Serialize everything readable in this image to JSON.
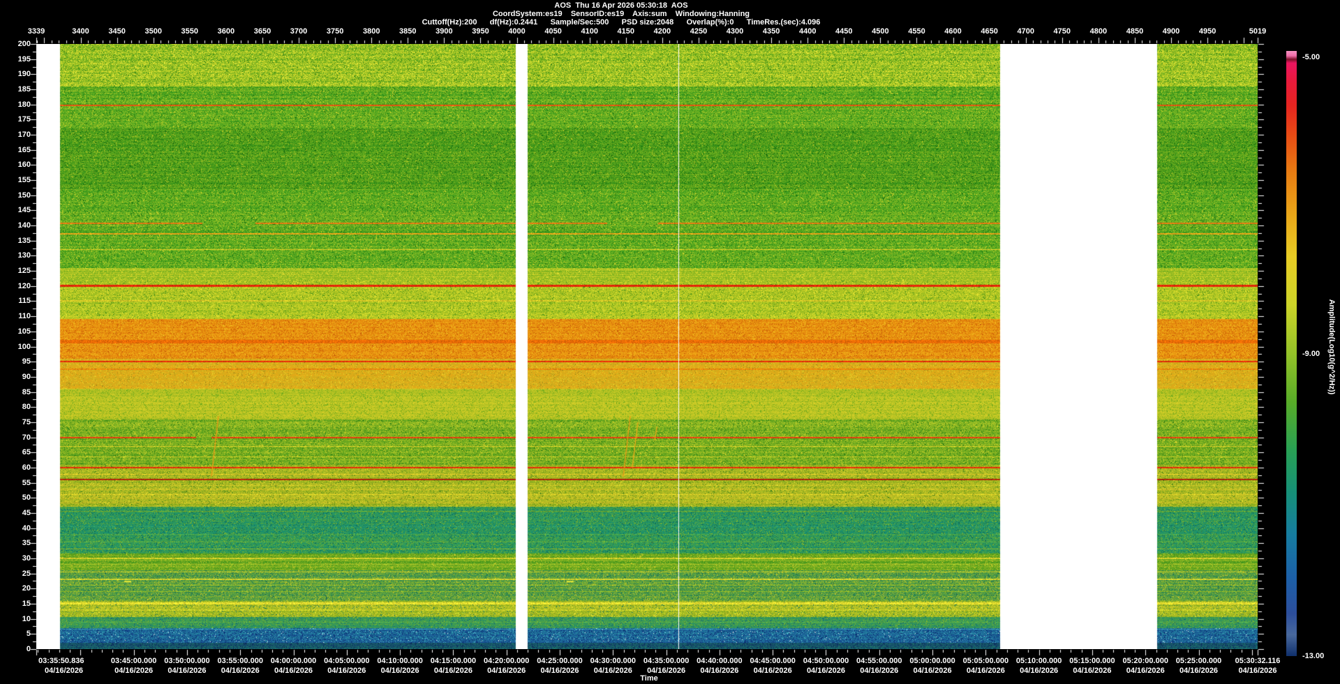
{
  "colors": {
    "background": "#000000",
    "text": "#ffffff"
  },
  "header": {
    "line1": "AOS  Thu 16 Apr 2026 05:30:18  AOS",
    "line2": "CoordSystem:es19    SensorID:es19    Axis:sum    Windowing:Hanning",
    "line3": "Cuttoff(Hz):200      df(Hz):0.2441      Sample/Sec:500      PSD size:2048      Overlap(%):0      TimeRes.(sec):4.096"
  },
  "chart_data": {
    "type": "heatmap",
    "title": "AOS spectrogram",
    "top_axis": {
      "unit_range": [
        3339,
        5019
      ],
      "minor_step": 10,
      "major_step": 50,
      "labels": [
        3339,
        3400,
        3450,
        3500,
        3550,
        3600,
        3650,
        3700,
        3750,
        3800,
        3850,
        3900,
        3950,
        4000,
        4050,
        4100,
        4150,
        4200,
        4250,
        4300,
        4350,
        4400,
        4450,
        4500,
        4550,
        4600,
        4650,
        4700,
        4750,
        4800,
        4850,
        4900,
        4950,
        5019
      ]
    },
    "freq_axis": {
      "range": [
        0,
        200
      ],
      "label_step": 5,
      "minor_step": 2.5,
      "labels": [
        200,
        195,
        190,
        185,
        180,
        175,
        170,
        165,
        160,
        155,
        150,
        145,
        140,
        135,
        130,
        125,
        120,
        115,
        110,
        105,
        100,
        95,
        90,
        85,
        80,
        75,
        70,
        65,
        60,
        55,
        50,
        45,
        40,
        35,
        30,
        25,
        20,
        15,
        10,
        5,
        0
      ]
    },
    "time_axis": {
      "title": "Time",
      "date": "04/16/2026",
      "start_sec": 12950.836,
      "end_sec": 19832.116,
      "major_step_sec": 300,
      "minor_step_sec": 60,
      "labels": [
        {
          "text": "03:35:50.836",
          "sec": 12950.836
        },
        {
          "text": "03:45:00.000",
          "sec": 13500
        },
        {
          "text": "03:50:00.000",
          "sec": 13800
        },
        {
          "text": "03:55:00.000",
          "sec": 14100
        },
        {
          "text": "04:00:00.000",
          "sec": 14400
        },
        {
          "text": "04:05:00.000",
          "sec": 14700
        },
        {
          "text": "04:10:00.000",
          "sec": 15000
        },
        {
          "text": "04:15:00.000",
          "sec": 15300
        },
        {
          "text": "04:20:00.000",
          "sec": 15600
        },
        {
          "text": "04:25:00.000",
          "sec": 15900
        },
        {
          "text": "04:30:00.000",
          "sec": 16200
        },
        {
          "text": "04:35:00.000",
          "sec": 16500
        },
        {
          "text": "04:40:00.000",
          "sec": 16800
        },
        {
          "text": "04:45:00.000",
          "sec": 17100
        },
        {
          "text": "04:50:00.000",
          "sec": 17400
        },
        {
          "text": "04:55:00.000",
          "sec": 17700
        },
        {
          "text": "05:00:00.000",
          "sec": 18000
        },
        {
          "text": "05:05:00.000",
          "sec": 18300
        },
        {
          "text": "05:10:00.000",
          "sec": 18600
        },
        {
          "text": "05:15:00.000",
          "sec": 18900
        },
        {
          "text": "05:20:00.000",
          "sec": 19200
        },
        {
          "text": "05:25:00.000",
          "sec": 19500
        },
        {
          "text": "05:30:32.116",
          "sec": 19832.116
        }
      ]
    },
    "colorbar": {
      "label": "Amplitude(Log10(g^2/Hz))",
      "tick_labels": [
        {
          "text": "-5.00",
          "pos": 0.01
        },
        {
          "text": "-9.00",
          "pos": 0.5
        },
        {
          "text": "-13.00",
          "pos": 1.0
        }
      ],
      "stops": [
        [
          0.0,
          "#f592c0"
        ],
        [
          0.008,
          "#f06ca8"
        ],
        [
          0.014,
          "#7c1028"
        ],
        [
          0.02,
          "#ec1460"
        ],
        [
          0.05,
          "#e81a3c"
        ],
        [
          0.09,
          "#e62420"
        ],
        [
          0.14,
          "#e84c14"
        ],
        [
          0.2,
          "#e87c12"
        ],
        [
          0.27,
          "#eaa618"
        ],
        [
          0.34,
          "#e8cc24"
        ],
        [
          0.42,
          "#ccd428"
        ],
        [
          0.5,
          "#94c228"
        ],
        [
          0.58,
          "#58ac28"
        ],
        [
          0.66,
          "#28a054"
        ],
        [
          0.73,
          "#169078"
        ],
        [
          0.8,
          "#167ca0"
        ],
        [
          0.87,
          "#1c60a8"
        ],
        [
          0.93,
          "#2c4e9c"
        ],
        [
          0.965,
          "#48689c"
        ],
        [
          1.0,
          "#10306c"
        ]
      ]
    },
    "data_segments": [
      [
        0.0194,
        0.3926
      ],
      [
        0.4023,
        0.7891
      ],
      [
        0.9177,
        1.0
      ]
    ],
    "white_line_frac": 0.5257,
    "bands": [
      {
        "lo": 186,
        "hi": 201,
        "c1": "#58a41c",
        "c2": "#d8dc2c",
        "spread": 0.95,
        "sp": [
          [
            "#eeee3e",
            0.09
          ],
          [
            "#2e7c14",
            0.06
          ]
        ]
      },
      {
        "lo": 152,
        "hi": 172,
        "c1": "#2a8c18",
        "c2": "#7eb620",
        "spread": 0.9,
        "sp": [
          [
            "#c8cc28",
            0.04
          ],
          [
            "#1a6c0e",
            0.1
          ]
        ]
      },
      {
        "lo": 126,
        "hi": 186,
        "c1": "#2f961c",
        "c2": "#94c226",
        "spread": 0.9,
        "sp": [
          [
            "#d8d82c",
            0.05
          ],
          [
            "#1d7210",
            0.07
          ]
        ]
      },
      {
        "lo": 121.7,
        "hi": 126,
        "c1": "#6cac1e",
        "c2": "#ccd028",
        "spread": 0.9,
        "sp": [
          [
            "#e8e434",
            0.07
          ]
        ]
      },
      {
        "lo": 109,
        "hi": 121.7,
        "c1": "#84b41e",
        "c2": "#d4d428",
        "spread": 0.9,
        "sp": [
          [
            "#e8e834",
            0.1
          ],
          [
            "#448c18",
            0.06
          ]
        ]
      },
      {
        "lo": 96,
        "hi": 109,
        "c1": "#e07c0a",
        "c2": "#f0a816",
        "spread": 0.85,
        "sp": [
          [
            "#f0c020",
            0.08
          ],
          [
            "#c85c08",
            0.1
          ]
        ]
      },
      {
        "lo": 86,
        "hi": 96,
        "c1": "#c8b020",
        "c2": "#e8a816",
        "spread": 0.85,
        "sp": [
          [
            "#e8d028",
            0.1
          ],
          [
            "#a08818",
            0.05
          ]
        ]
      },
      {
        "lo": 76,
        "hi": 86,
        "c1": "#9cb820",
        "c2": "#d8d028",
        "spread": 0.9,
        "sp": [
          [
            "#68a81c",
            0.09
          ]
        ]
      },
      {
        "lo": 61,
        "hi": 76,
        "c1": "#48981c",
        "c2": "#a8c426",
        "spread": 0.9,
        "sp": [
          [
            "#d8d42c",
            0.06
          ],
          [
            "#2a7812",
            0.06
          ]
        ]
      },
      {
        "lo": 47,
        "hi": 61,
        "c1": "#84aa1e",
        "c2": "#ccc426",
        "spread": 0.9,
        "sp": [
          [
            "#e0dc30",
            0.07
          ],
          [
            "#417f18",
            0.06
          ]
        ]
      },
      {
        "lo": 31.5,
        "hi": 47,
        "c1": "#148c74",
        "c2": "#48a444",
        "spread": 0.9,
        "sp": [
          [
            "#88b828",
            0.07
          ],
          [
            "#0c6858",
            0.09
          ]
        ]
      },
      {
        "lo": 26,
        "hi": 31.5,
        "c1": "#3f941c",
        "c2": "#98bc24",
        "spread": 0.9,
        "sp": [
          [
            "#d0cc2c",
            0.06
          ]
        ]
      },
      {
        "lo": 16,
        "hi": 26,
        "c1": "#2f8c54",
        "c2": "#88b42c",
        "spread": 0.9,
        "sp": [
          [
            "#c8c82c",
            0.07
          ],
          [
            "#176850",
            0.07
          ]
        ]
      },
      {
        "lo": 10.5,
        "hi": 16,
        "c1": "#78a81e",
        "c2": "#d0cc28",
        "spread": 0.9,
        "sp": [
          [
            "#e8e434",
            0.07
          ],
          [
            "#1f7858",
            0.06
          ]
        ]
      },
      {
        "lo": 7,
        "hi": 10.5,
        "c1": "#1f8c6c",
        "c2": "#50a444",
        "spread": 0.9,
        "sp": [
          [
            "#88b828",
            0.06
          ],
          [
            "#0e6078",
            0.07
          ]
        ]
      },
      {
        "lo": 2,
        "hi": 7,
        "c1": "#174e94",
        "c2": "#2588a0",
        "spread": 0.95,
        "sp": [
          [
            "#0c3474",
            0.16
          ],
          [
            "#58c0d0",
            0.05
          ],
          [
            "#e8f0f0",
            0.012
          ]
        ]
      },
      {
        "lo": 0,
        "hi": 2,
        "c1": "#11406c",
        "c2": "#1f7868",
        "spread": 0.9,
        "sp": [
          [
            "#0c2c58",
            0.15
          ]
        ]
      }
    ],
    "lines": [
      {
        "f": 179.6,
        "h": 2,
        "c": "#e85510"
      },
      {
        "f": 140.6,
        "h": 2,
        "c": "#e87a12",
        "gaps": [
          [
            0.136,
            0.179
          ],
          [
            0.467,
            0.509
          ]
        ]
      },
      {
        "f": 137.2,
        "h": 2,
        "c": "#e8a418"
      },
      {
        "f": 132.0,
        "h": 1,
        "c": "#d8cc28"
      },
      {
        "f": 120.0,
        "h": 3,
        "c": "#e42608"
      },
      {
        "f": 115.2,
        "h": 2,
        "c": "#d8c828"
      },
      {
        "f": 101.5,
        "h": 5,
        "c": "#ec6c06"
      },
      {
        "f": 95.0,
        "h": 2,
        "c": "#e62c08"
      },
      {
        "f": 92.6,
        "h": 2,
        "c": "#e8860e"
      },
      {
        "f": 70.0,
        "h": 2,
        "c": "#e84010",
        "gaps": [
          [
            0.1303,
            0.1429
          ]
        ]
      },
      {
        "f": 67.0,
        "h": 1,
        "c": "#d4cc28"
      },
      {
        "f": 63.5,
        "h": 1,
        "c": "#c4c826"
      },
      {
        "f": 60.0,
        "h": 2,
        "c": "#e42e08"
      },
      {
        "f": 57.8,
        "h": 1,
        "c": "#dcc828"
      },
      {
        "f": 56.0,
        "h": 2,
        "c": "#b22408"
      },
      {
        "f": 54.2,
        "h": 1,
        "c": "#d0c828"
      },
      {
        "f": 52.6,
        "h": 1,
        "c": "#ccc026"
      },
      {
        "f": 51.0,
        "h": 1,
        "c": "#dcd028"
      },
      {
        "f": 49.8,
        "h": 1,
        "c": "#c4bc24"
      },
      {
        "f": 48.4,
        "h": 1,
        "c": "#b4b422"
      },
      {
        "f": 45.5,
        "h": 1,
        "c": "#74ac2c"
      },
      {
        "f": 43.0,
        "h": 1,
        "c": "#3ca05c"
      },
      {
        "f": 40.5,
        "h": 1,
        "c": "#2c9c6c"
      },
      {
        "f": 38.0,
        "h": 1,
        "c": "#4ca84c"
      },
      {
        "f": 35.5,
        "h": 1,
        "c": "#60ac40"
      },
      {
        "f": 33.0,
        "h": 1,
        "c": "#84b430"
      },
      {
        "f": 30.0,
        "h": 2,
        "c": "#d4d028"
      },
      {
        "f": 28.0,
        "h": 1,
        "c": "#a2c028"
      },
      {
        "f": 25.5,
        "h": 1,
        "c": "#bcc828"
      },
      {
        "f": 23.0,
        "h": 2,
        "c": "#d4d42c"
      },
      {
        "f": 21.0,
        "h": 1,
        "c": "#9abc28"
      },
      {
        "f": 19.0,
        "h": 1,
        "c": "#8cb828"
      },
      {
        "f": 15.0,
        "h": 3,
        "c": "#e8e030"
      },
      {
        "f": 13.0,
        "h": 2,
        "c": "#ccd028"
      },
      {
        "f": 11.8,
        "h": 1,
        "c": "#bcc828"
      },
      {
        "f": 8.8,
        "h": 1,
        "c": "#58ac48"
      },
      {
        "f": 6.6,
        "h": 1,
        "c": "#38a0b0"
      }
    ],
    "chirps": [
      {
        "xf": 0.1434,
        "f0": 57,
        "f1": 77,
        "dxf": 0.0057,
        "c": "#e89a16"
      },
      {
        "xf": 0.4806,
        "f0": 57,
        "f1": 77,
        "dxf": 0.0057,
        "c": "#e89a16"
      },
      {
        "xf": 0.488,
        "f0": 60,
        "f1": 75,
        "dxf": 0.0046,
        "c": "#e8a818"
      },
      {
        "xf": 0.5063,
        "f0": 69,
        "f1": 73.5,
        "dxf": 0.002,
        "c": "#e8a818"
      }
    ],
    "dashes": [
      {
        "x0f": 0.072,
        "x1f": 0.0777,
        "f": 22.3,
        "c": "#f0ee38"
      },
      {
        "x0f": 0.4343,
        "x1f": 0.44,
        "f": 22.3,
        "c": "#f0ee38"
      }
    ]
  }
}
